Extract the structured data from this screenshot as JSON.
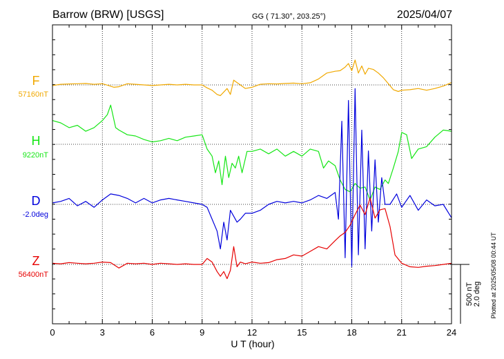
{
  "header": {
    "station": "Barrow (BRW)  [USGS]",
    "coords": "GG ( 71.30°, 203.25°)",
    "date": "2025/04/07"
  },
  "footer": {
    "plotted": "Plotted at 2025/05/08 00:44 UT"
  },
  "scale_bar": {
    "line1": "500 nT",
    "line2": "2.0 deg"
  },
  "chart_data": {
    "type": "line",
    "title": "Barrow (BRW)  [USGS]",
    "xlabel": "U T (hour)",
    "xlim": [
      0,
      24
    ],
    "x_ticks": [
      0,
      3,
      6,
      9,
      12,
      15,
      18,
      21,
      24
    ],
    "grid": true,
    "colors": {
      "F": "#f0a800",
      "H": "#14e614",
      "D": "#0000dc",
      "Z": "#e60000"
    },
    "series": [
      {
        "name": "F",
        "baseline_label": "57160nT",
        "units": "nT",
        "x": [
          0,
          0.5,
          1,
          1.5,
          2,
          2.5,
          3,
          3.3,
          3.7,
          4,
          4.5,
          5,
          5.5,
          6,
          6.5,
          7,
          7.5,
          8,
          8.5,
          9,
          9.3,
          9.6,
          9.9,
          10.1,
          10.3,
          10.5,
          10.7,
          10.9,
          11.1,
          11.3,
          11.6,
          12,
          12.5,
          13,
          13.5,
          14,
          14.5,
          15,
          15.5,
          16,
          16.5,
          17,
          17.3,
          17.6,
          17.8,
          18,
          18.2,
          18.4,
          18.6,
          18.8,
          19,
          19.3,
          19.6,
          19.9,
          20.2,
          20.5,
          20.8,
          21,
          21.5,
          22,
          22.5,
          23,
          23.5,
          24
        ],
        "y": [
          -5,
          5,
          8,
          10,
          12,
          5,
          10,
          -2,
          -20,
          -15,
          10,
          5,
          0,
          -5,
          0,
          5,
          0,
          5,
          0,
          0,
          -25,
          -45,
          -80,
          -90,
          -60,
          -30,
          -80,
          40,
          20,
          0,
          -30,
          -20,
          5,
          10,
          8,
          12,
          15,
          10,
          18,
          50,
          100,
          115,
          120,
          150,
          180,
          120,
          210,
          100,
          160,
          90,
          140,
          130,
          100,
          60,
          10,
          -40,
          -55,
          -45,
          -40,
          -30,
          -45,
          -30,
          -10,
          20
        ]
      },
      {
        "name": "H",
        "baseline_label": "9220nT",
        "units": "nT",
        "x": [
          0,
          0.5,
          1,
          1.5,
          2,
          2.5,
          3,
          3.3,
          3.5,
          3.8,
          4,
          4.5,
          5,
          5.5,
          6,
          6.5,
          7,
          7.5,
          8,
          8.5,
          9,
          9.3,
          9.6,
          9.8,
          10,
          10.2,
          10.4,
          10.6,
          10.8,
          11,
          11.2,
          11.4,
          11.7,
          12,
          12.5,
          13,
          13.5,
          14,
          14.5,
          15,
          15.5,
          16,
          16.3,
          16.6,
          17,
          17.3,
          17.6,
          17.9,
          18.2,
          18.5,
          18.8,
          19.1,
          19.4,
          19.7,
          20,
          20.2,
          20.5,
          20.8,
          21,
          21.3,
          21.6,
          22,
          22.5,
          23,
          23.5,
          24
        ],
        "y": [
          200,
          180,
          140,
          160,
          110,
          140,
          200,
          250,
          330,
          140,
          120,
          80,
          70,
          40,
          20,
          30,
          50,
          30,
          60,
          70,
          80,
          -40,
          -100,
          -240,
          -140,
          -340,
          -100,
          -280,
          -160,
          -200,
          -100,
          -240,
          -60,
          -60,
          -40,
          -80,
          -40,
          -100,
          -60,
          -100,
          -40,
          -60,
          -200,
          -140,
          -180,
          -300,
          -380,
          -400,
          -330,
          -370,
          -360,
          -470,
          -360,
          -380,
          -300,
          -330,
          -200,
          -60,
          100,
          80,
          -120,
          -40,
          -20,
          60,
          120,
          110
        ]
      },
      {
        "name": "D",
        "baseline_label": "-2.0deg",
        "units": "deg",
        "x": [
          0,
          0.5,
          1,
          1.5,
          2,
          2.5,
          3,
          3.5,
          4,
          4.5,
          5,
          5.5,
          6,
          6.5,
          7,
          7.5,
          8,
          8.5,
          9,
          9.3,
          9.6,
          9.9,
          10.1,
          10.3,
          10.5,
          10.7,
          10.9,
          11.1,
          11.3,
          11.6,
          12,
          12.5,
          13,
          13.5,
          14,
          14.5,
          15,
          15.5,
          16,
          16.5,
          17,
          17.2,
          17.4,
          17.6,
          17.8,
          18,
          18.2,
          18.4,
          18.6,
          18.8,
          19,
          19.2,
          19.4,
          19.6,
          19.8,
          20,
          20.3,
          20.7,
          21,
          21.5,
          22,
          22.5,
          23,
          23.5,
          24
        ],
        "y": [
          0.05,
          0.1,
          0.2,
          -0.05,
          0.1,
          -0.1,
          0.15,
          0.35,
          0.3,
          0.2,
          0.05,
          0.2,
          0.05,
          0.15,
          0.2,
          0.15,
          0.1,
          0.05,
          0,
          -0.1,
          -0.5,
          -0.9,
          -1.5,
          -0.6,
          -1.2,
          -0.2,
          -0.4,
          -0.6,
          -0.5,
          -0.3,
          -0.3,
          -0.2,
          0,
          0.1,
          0.05,
          0.1,
          0.05,
          0.15,
          0.3,
          0.2,
          0.4,
          -0.5,
          2.8,
          -1.8,
          3.5,
          -2.1,
          3.9,
          -1.7,
          2.5,
          -1.5,
          1.8,
          -0.9,
          1.5,
          -0.6,
          0.9,
          0,
          0,
          0.35,
          -0.1,
          0.3,
          -0.2,
          0.15,
          -0.05,
          0,
          -0.45
        ]
      },
      {
        "name": "Z",
        "baseline_label": "56400nT",
        "units": "nT",
        "x": [
          0,
          0.5,
          1,
          1.5,
          2,
          2.5,
          3,
          3.5,
          4,
          4.5,
          5,
          5.5,
          6,
          6.5,
          7,
          7.5,
          8,
          8.5,
          9,
          9.3,
          9.6,
          9.9,
          10.1,
          10.3,
          10.5,
          10.7,
          10.9,
          11.1,
          11.3,
          11.6,
          12,
          12.5,
          13,
          13.5,
          14,
          14.5,
          15,
          15.5,
          16,
          16.5,
          17,
          17.3,
          17.6,
          17.9,
          18.2,
          18.5,
          18.8,
          19.1,
          19.4,
          19.7,
          20,
          20.3,
          20.6,
          21,
          21.5,
          22,
          22.5,
          23,
          23.5,
          24
        ],
        "y": [
          10,
          5,
          15,
          10,
          5,
          10,
          20,
          15,
          -30,
          10,
          5,
          10,
          0,
          10,
          5,
          0,
          5,
          0,
          0,
          50,
          20,
          -60,
          -100,
          -60,
          -120,
          -50,
          150,
          -20,
          20,
          5,
          20,
          10,
          15,
          40,
          50,
          80,
          70,
          110,
          150,
          130,
          200,
          240,
          270,
          330,
          420,
          500,
          420,
          560,
          390,
          460,
          470,
          320,
          80,
          10,
          -20,
          -25,
          -15,
          -10,
          0,
          10
        ]
      }
    ]
  }
}
